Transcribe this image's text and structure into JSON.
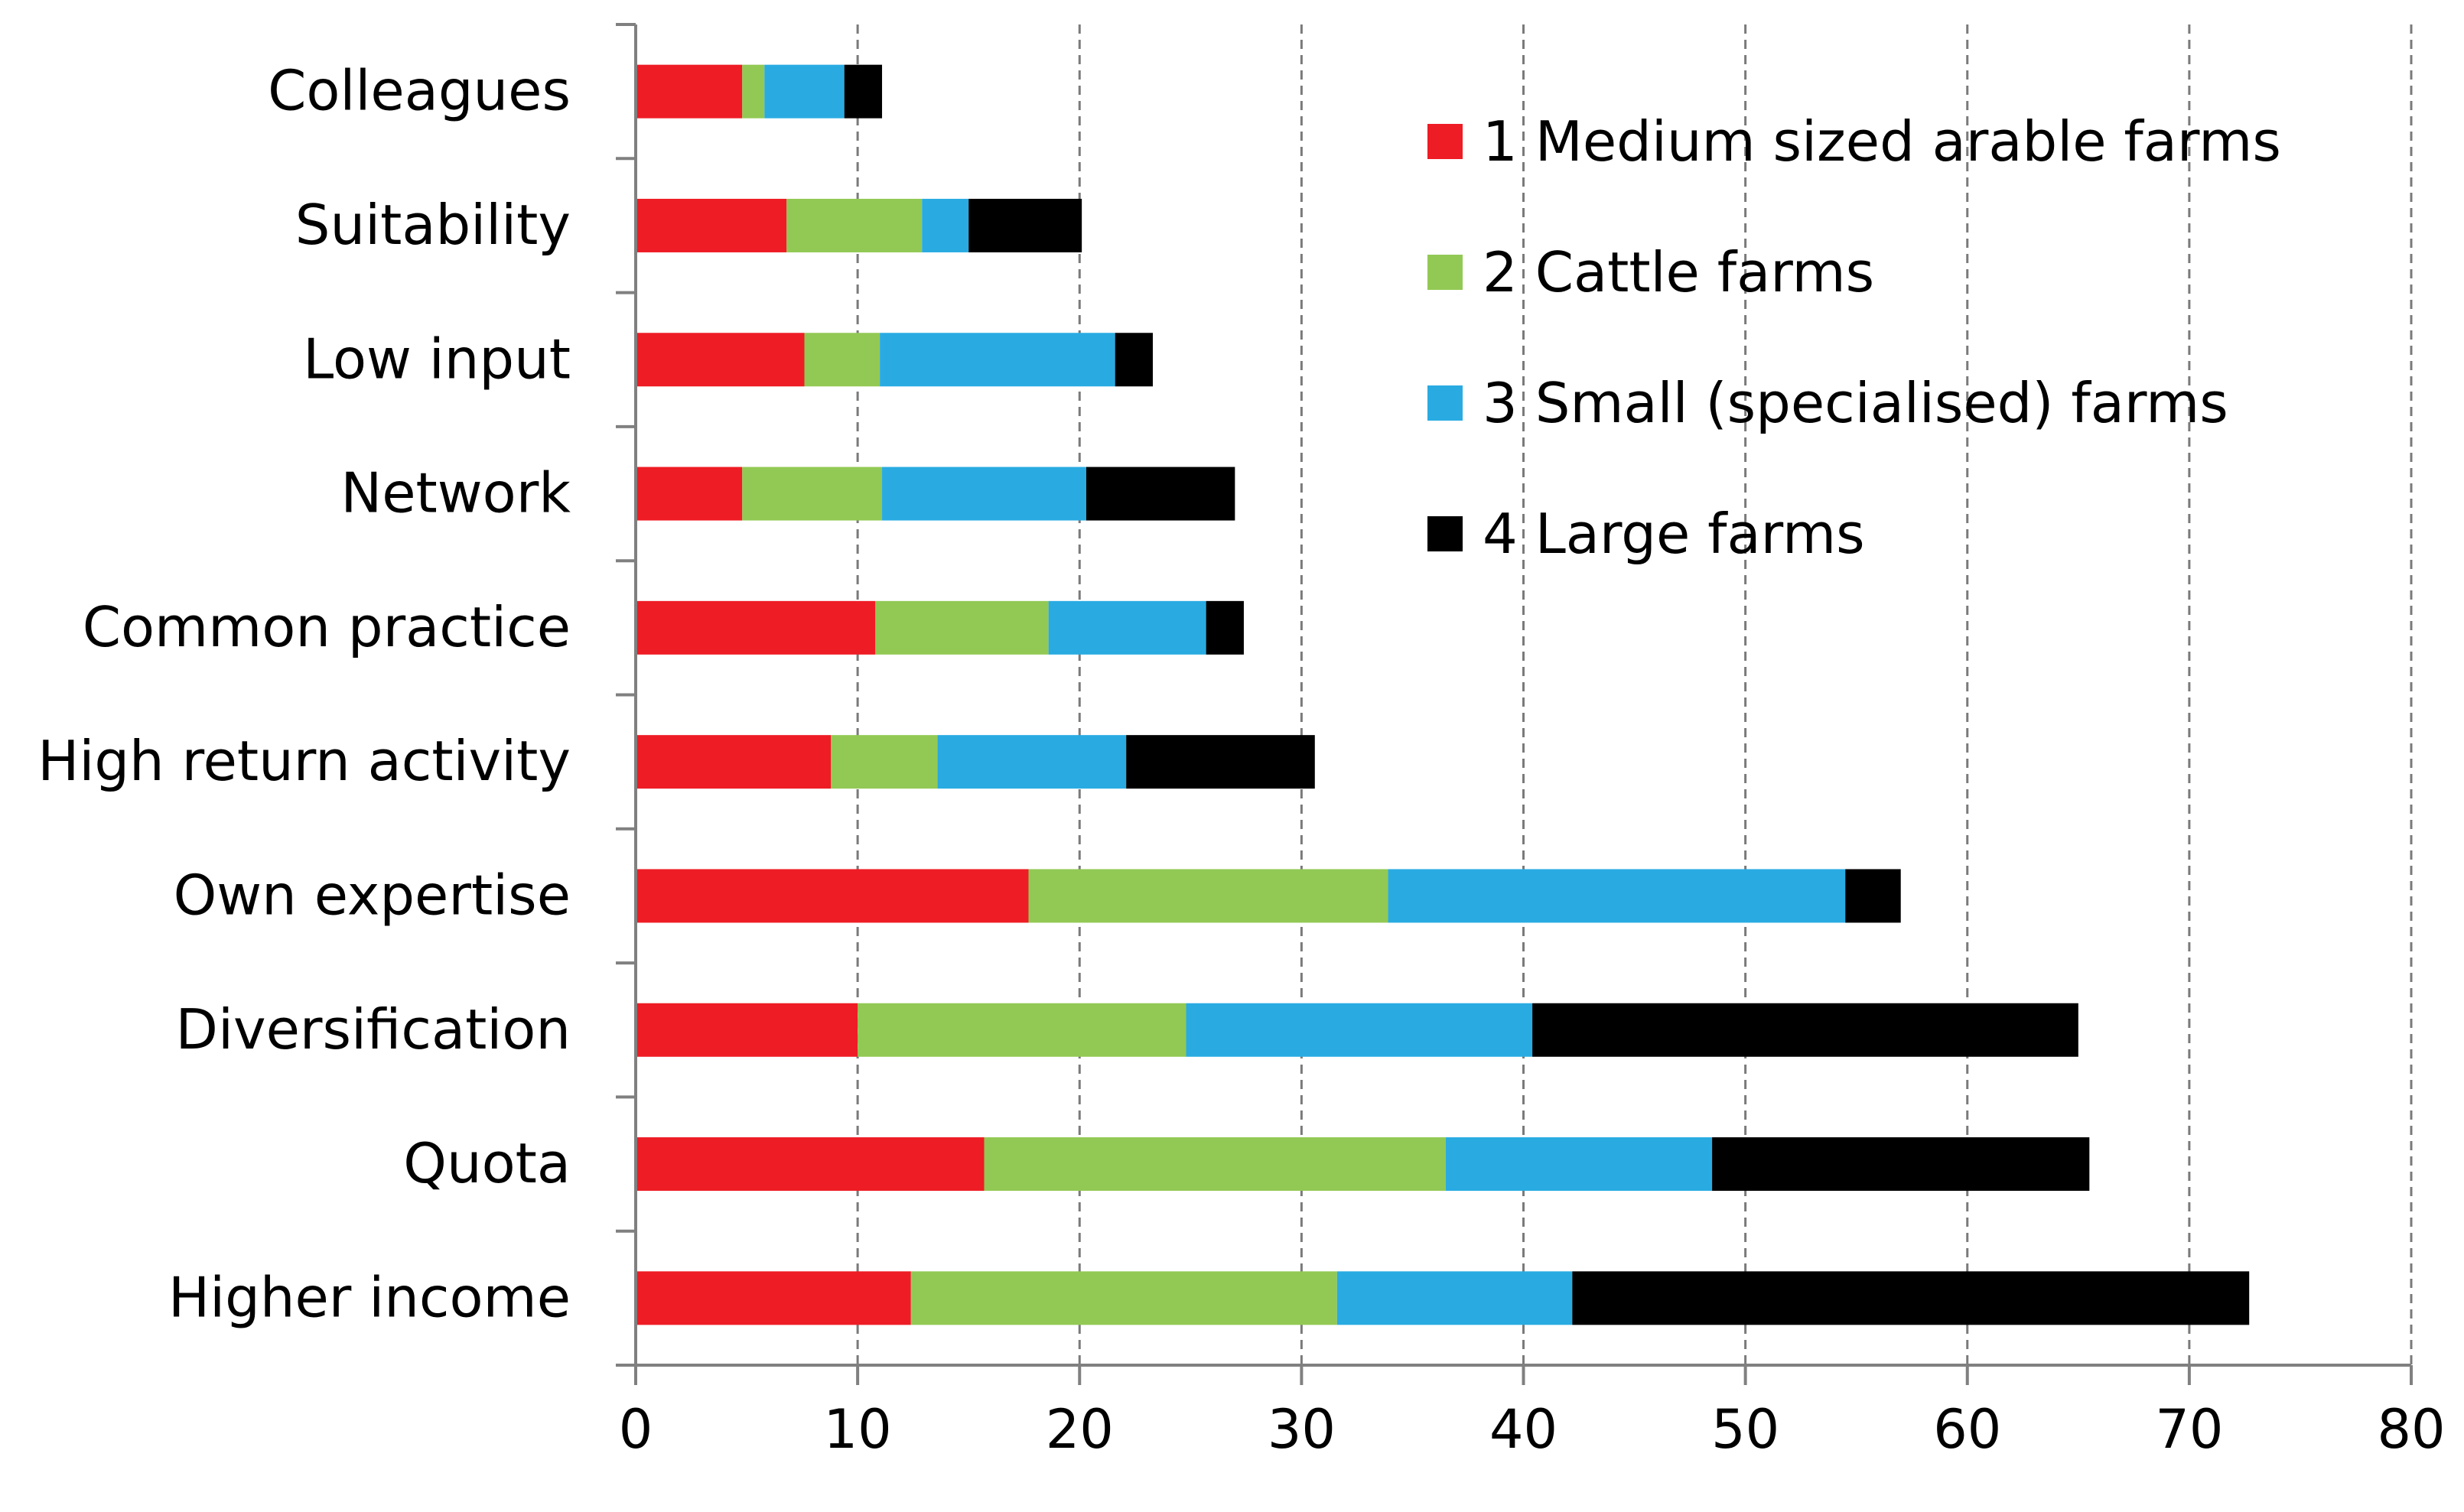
{
  "chart_data": {
    "type": "bar",
    "orientation": "horizontal",
    "stacked": true,
    "categories": [
      "Colleagues",
      "Suitability",
      "Low input",
      "Network",
      "Common practice",
      "High return activity",
      "Own expertise",
      "Diversification",
      "Quota",
      "Higher income"
    ],
    "series": [
      {
        "name": "1 Medium sized arable farms",
        "color": "#ee1c25",
        "values": [
          4.8,
          6.8,
          7.6,
          4.8,
          10.8,
          8.8,
          17.7,
          10.0,
          15.7,
          12.4
        ]
      },
      {
        "name": "2 Cattle farms",
        "color": "#92c954",
        "values": [
          1.0,
          6.1,
          3.4,
          6.3,
          7.8,
          4.8,
          16.2,
          14.8,
          20.8,
          19.2
        ]
      },
      {
        "name": "3 Small (specialised) farms",
        "color": "#29abe2",
        "values": [
          3.6,
          2.1,
          10.6,
          9.2,
          7.1,
          8.5,
          20.6,
          15.6,
          12.0,
          10.6
        ]
      },
      {
        "name": "4 Large farms",
        "color": "#000000",
        "values": [
          1.7,
          5.1,
          1.7,
          6.7,
          1.7,
          8.5,
          2.5,
          24.6,
          17.0,
          30.5
        ]
      }
    ],
    "xlim": [
      0,
      80
    ],
    "xticks": [
      0,
      10,
      20,
      30,
      40,
      50,
      60,
      70,
      80
    ],
    "grid": "vertical dashed",
    "legend_position": "top-right",
    "title": "",
    "xlabel": "",
    "ylabel": ""
  }
}
